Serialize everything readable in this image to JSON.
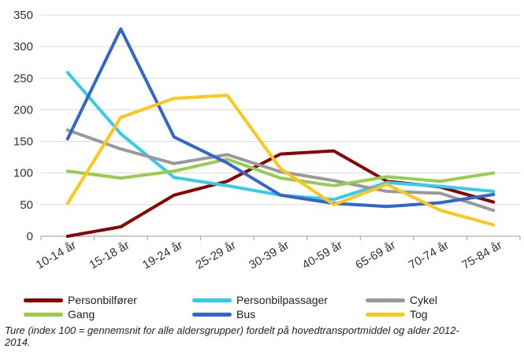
{
  "chart_data": {
    "type": "line",
    "categories": [
      "10-14 år",
      "15-18 år",
      "19-24 år",
      "25-29 år",
      "30-39 år",
      "40-59 år",
      "65-69 år",
      "70-74 år",
      "75-84 år"
    ],
    "ylim": [
      0,
      350
    ],
    "yticks": [
      "0",
      "50",
      "100",
      "150",
      "200",
      "250",
      "300",
      "350"
    ],
    "grid": true,
    "legend_position": "bottom",
    "series": [
      {
        "name": "Personbilfører",
        "color": "#8B0000",
        "values": [
          0,
          15,
          65,
          87,
          130,
          135,
          87,
          78,
          54
        ]
      },
      {
        "name": "Personbilpassager",
        "color": "#33CCF0",
        "values": [
          259,
          162,
          93,
          80,
          65,
          58,
          85,
          79,
          71
        ]
      },
      {
        "name": "Cykel",
        "color": "#999999",
        "values": [
          168,
          138,
          115,
          129,
          102,
          88,
          71,
          68,
          41
        ]
      },
      {
        "name": "Gang",
        "color": "#99CC4C",
        "values": [
          103,
          92,
          103,
          122,
          92,
          80,
          94,
          87,
          100
        ]
      },
      {
        "name": "Bus",
        "color": "#3366CC",
        "values": [
          154,
          328,
          157,
          116,
          65,
          52,
          47,
          53,
          66
        ]
      },
      {
        "name": "Tog",
        "color": "#FFC61A",
        "values": [
          52,
          188,
          218,
          223,
          107,
          50,
          82,
          41,
          18
        ]
      }
    ]
  },
  "caption": "Ture (index 100 = gennemsnit for alle aldersgrupper) fordelt på hovedtransportmiddel og alder 2012-2014."
}
